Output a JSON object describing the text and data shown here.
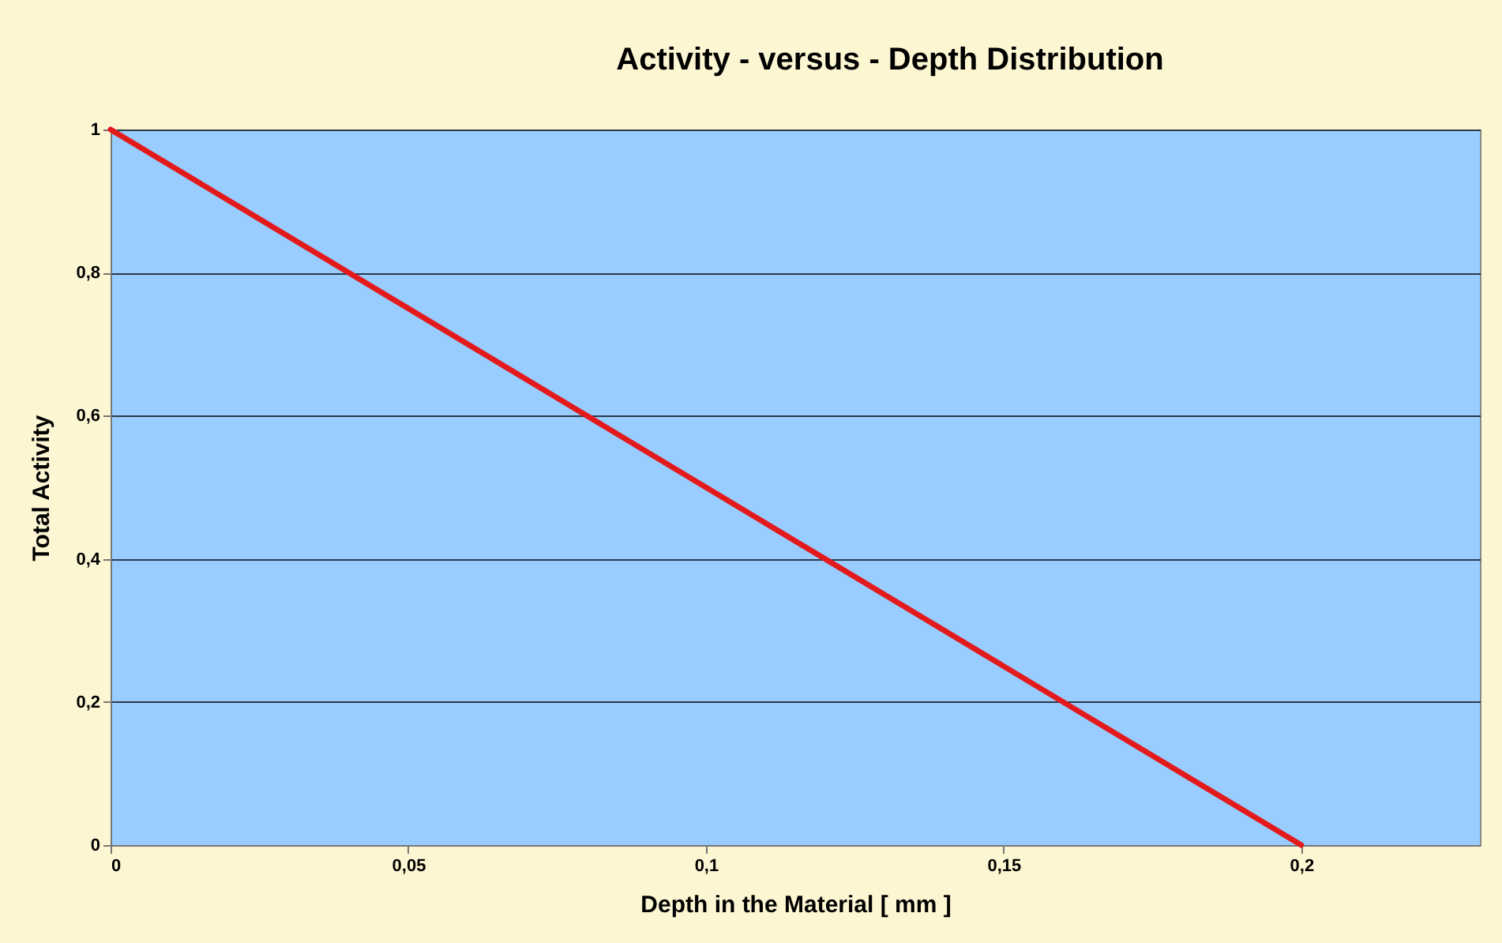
{
  "chart_data": {
    "type": "line",
    "title": "Activity - versus - Depth Distribution",
    "xlabel": "Depth in the Material [ mm ]",
    "ylabel": "Total Activity",
    "x": [
      0,
      0.2
    ],
    "series": [
      {
        "color": "#e31a1c",
        "values": [
          1,
          0
        ]
      }
    ],
    "xlim": [
      0,
      0.23
    ],
    "xticks": [
      0,
      {
        "value": 0.05,
        "label": "0,05"
      },
      {
        "value": 0.1,
        "label": "0,1"
      },
      {
        "value": 0.15,
        "label": "0,15"
      },
      {
        "value": 0.2,
        "label": "0,2"
      }
    ],
    "ylim": [
      0,
      1
    ],
    "yticks": [
      0,
      {
        "value": 0.2,
        "label": "0,2"
      },
      {
        "value": 0.4,
        "label": "0,4"
      },
      {
        "value": 0.6,
        "label": "0,6"
      },
      {
        "value": 0.8,
        "label": "0,8"
      },
      1
    ],
    "grid": "y",
    "marker": "none",
    "line_style": "solid"
  }
}
